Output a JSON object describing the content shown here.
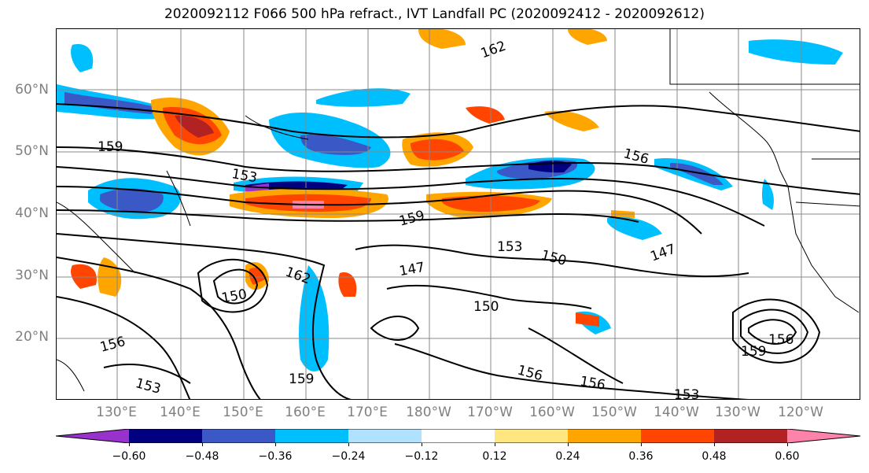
{
  "title": "2020092112 F066 500 hPa refract., IVT Landfall PC (2020092412 - 2020092612)",
  "latitude_labels": [
    "60°N",
    "50°N",
    "40°N",
    "30°N",
    "20°N"
  ],
  "longitude_labels": [
    "130°E",
    "140°E",
    "150°E",
    "160°E",
    "170°E",
    "180°W",
    "170°W",
    "160°W",
    "150°W",
    "140°W",
    "130°W",
    "120°W"
  ],
  "contour_labels": [
    "162",
    "159",
    "156",
    "153",
    "150",
    "147",
    "162",
    "159",
    "156",
    "153",
    "150",
    "147",
    "156",
    "153",
    "159",
    "156",
    "153",
    "150",
    "156",
    "159"
  ],
  "colorbar": {
    "ticks": [
      "−0.60",
      "−0.48",
      "−0.36",
      "−0.24",
      "−0.12",
      "0.12",
      "0.24",
      "0.36",
      "0.48",
      "0.60"
    ],
    "colors": [
      "#9932cc",
      "#000080",
      "#3a58c6",
      "#00bfff",
      "#b0e2ff",
      "#ffffff",
      "#ffe680",
      "#ffa500",
      "#ff4500",
      "#b22222",
      "#ff82ab"
    ]
  }
}
